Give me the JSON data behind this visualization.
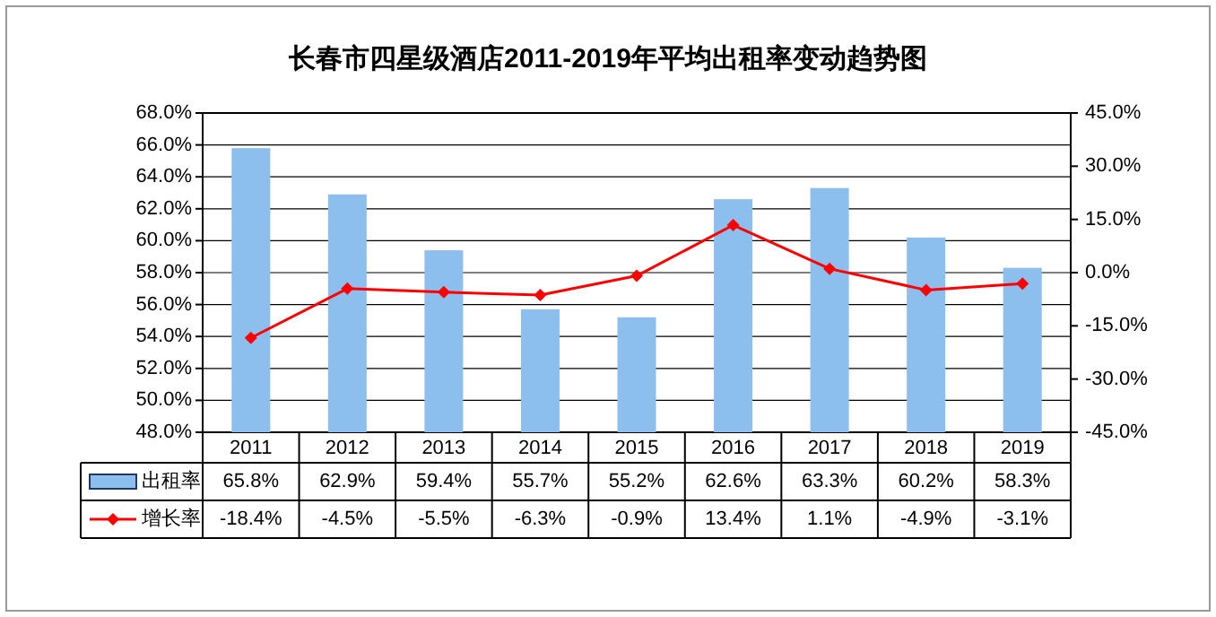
{
  "chart_data": {
    "type": "bar",
    "title": "长春市四星级酒店2011-2019年平均出租率变动趋势图",
    "categories": [
      "2011",
      "2012",
      "2013",
      "2014",
      "2015",
      "2016",
      "2017",
      "2018",
      "2019"
    ],
    "series": [
      {
        "name": "出租率",
        "color": "#8dbfee",
        "values": [
          65.8,
          62.9,
          59.4,
          55.7,
          55.2,
          62.6,
          63.3,
          60.2,
          58.3
        ],
        "value_labels": [
          "65.8%",
          "62.9%",
          "59.4%",
          "55.7%",
          "55.2%",
          "62.6%",
          "63.3%",
          "60.2%",
          "58.3%"
        ]
      },
      {
        "name": "增长率",
        "type": "line",
        "axis": "y2",
        "color": "#ff0000",
        "marker": "diamond",
        "values": [
          -18.4,
          -4.5,
          -5.5,
          -6.3,
          -0.9,
          13.4,
          1.1,
          -4.9,
          -3.1
        ],
        "value_labels": [
          "-18.4%",
          "-4.5%",
          "-5.5%",
          "-6.3%",
          "-0.9%",
          "13.4%",
          "1.1%",
          "-4.9%",
          "-3.1%"
        ]
      }
    ],
    "ylim": [
      48,
      68
    ],
    "yticks": [
      {
        "value": 48,
        "label": "48.0%"
      },
      {
        "value": 50,
        "label": "50.0%"
      },
      {
        "value": 52,
        "label": "52.0%"
      },
      {
        "value": 54,
        "label": "54.0%"
      },
      {
        "value": 56,
        "label": "56.0%"
      },
      {
        "value": 58,
        "label": "58.0%"
      },
      {
        "value": 60,
        "label": "60.0%"
      },
      {
        "value": 62,
        "label": "62.0%"
      },
      {
        "value": 64,
        "label": "64.0%"
      },
      {
        "value": 66,
        "label": "66.0%"
      },
      {
        "value": 68,
        "label": "68.0%"
      }
    ],
    "y2lim": [
      -45,
      45
    ],
    "y2ticks": [
      {
        "value": -45,
        "label": "-45.0%"
      },
      {
        "value": -30,
        "label": "-30.0%"
      },
      {
        "value": -15,
        "label": "-15.0%"
      },
      {
        "value": 0,
        "label": "0.0%"
      },
      {
        "value": 15,
        "label": "15.0%"
      },
      {
        "value": 30,
        "label": "30.0%"
      },
      {
        "value": 45,
        "label": "45.0%"
      }
    ],
    "grid": "y",
    "legend": "bottom"
  }
}
